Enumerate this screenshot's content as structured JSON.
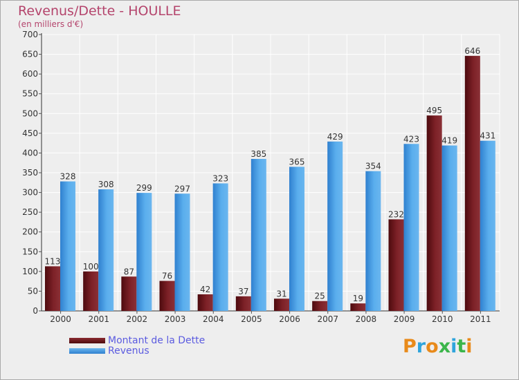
{
  "header": {
    "title": "Revenus/Dette - HOULLE",
    "subtitle": "(en milliers d'€)"
  },
  "legend": {
    "items": [
      {
        "label": "Montant de la Dette",
        "color": "#6b0d12"
      },
      {
        "label": "Revenus",
        "color": "#3a8fdf"
      }
    ]
  },
  "brand": {
    "letters": [
      "P",
      "r",
      "o",
      "x",
      "i",
      "t",
      "i"
    ],
    "colors": [
      "#e88a1a",
      "#2fa4dc",
      "#e88a1a",
      "#3bb54a",
      "#2fa4dc",
      "#3bb54a",
      "#e88a1a"
    ]
  },
  "chart_data": {
    "type": "bar",
    "title": "Revenus/Dette - HOULLE",
    "ylabel": "(en milliers d'€)",
    "xlabel": "",
    "categories": [
      "2000",
      "2001",
      "2002",
      "2003",
      "2004",
      "2005",
      "2006",
      "2007",
      "2008",
      "2009",
      "2010",
      "2011"
    ],
    "series": [
      {
        "name": "Montant de la Dette",
        "color": "#7a1a1f",
        "values": [
          113,
          100,
          87,
          76,
          42,
          37,
          31,
          25,
          19,
          232,
          495,
          646
        ]
      },
      {
        "name": "Revenus",
        "color": "#4aa3e8",
        "values": [
          328,
          308,
          299,
          297,
          323,
          385,
          365,
          429,
          354,
          423,
          419,
          431
        ]
      }
    ],
    "ylim": [
      0,
      700
    ],
    "yticks": [
      0,
      50,
      100,
      150,
      200,
      250,
      300,
      350,
      400,
      450,
      500,
      550,
      600,
      650,
      700
    ],
    "grid": true,
    "legend_position": "bottom-left"
  }
}
